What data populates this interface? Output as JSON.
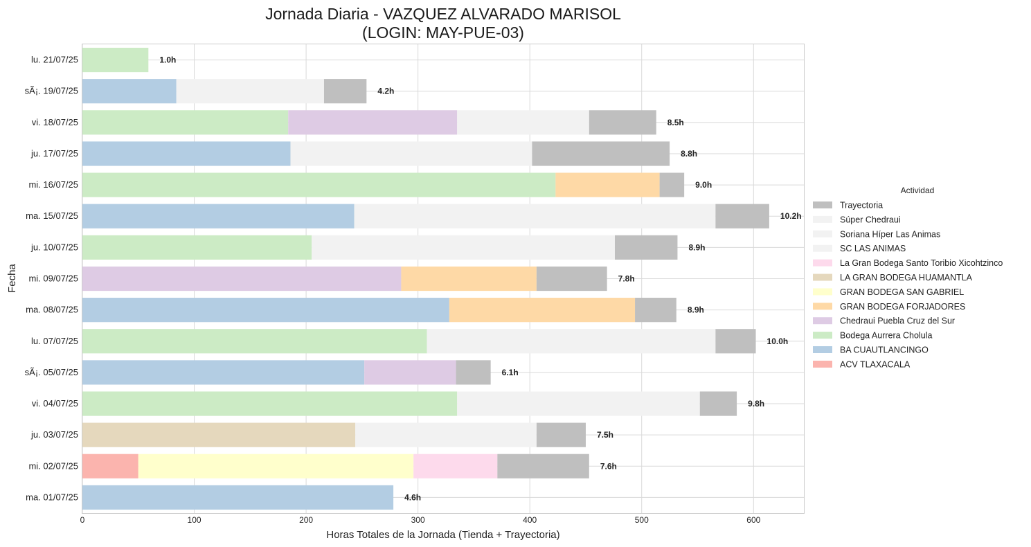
{
  "chart_data": {
    "type": "bar",
    "orientation": "horizontal",
    "stacked": true,
    "title": "Jornada Diaria - VAZQUEZ ALVARADO MARISOL",
    "subtitle": "(LOGIN: MAY-PUE-03)",
    "xlabel": "Horas Totales de la Jornada (Tienda + Trayectoria)",
    "ylabel": "Fecha",
    "xlim": [
      0,
      645
    ],
    "xticks": [
      0,
      100,
      200,
      300,
      400,
      500,
      600
    ],
    "grid": true,
    "legend": {
      "title": "Actividad",
      "placement": "center-right",
      "entries": [
        {
          "name": "Trayectoria",
          "color": "#bfbfbf"
        },
        {
          "name": "Súper Chedraui",
          "color": "#f2f2f2"
        },
        {
          "name": "Soriana Híper Las Animas",
          "color": "#f2f2f2"
        },
        {
          "name": "SC LAS ANIMAS",
          "color": "#f2f2f2"
        },
        {
          "name": "La Gran Bodega Santo Toribio Xicohtzinco",
          "color": "#fddaec"
        },
        {
          "name": "LA GRAN BODEGA HUAMANTLA",
          "color": "#e5d8bd"
        },
        {
          "name": "GRAN BODEGA SAN GABRIEL",
          "color": "#ffffcc"
        },
        {
          "name": "GRAN BODEGA FORJADORES",
          "color": "#fed9a6"
        },
        {
          "name": "Chedraui Puebla Cruz del Sur",
          "color": "#decbe4"
        },
        {
          "name": "Bodega Aurrera Cholula",
          "color": "#ccebc5"
        },
        {
          "name": "BA CUAUTLANCINGO",
          "color": "#b3cde3"
        },
        {
          "name": "ACV TLAXACALA",
          "color": "#fbb4ae"
        }
      ]
    },
    "rows": [
      {
        "date": "lu. 21/07/25",
        "total_label": "1.0h",
        "segments": [
          {
            "activity": "Bodega Aurrera Cholula",
            "value": 59
          }
        ]
      },
      {
        "date": "sÃ¡. 19/07/25",
        "total_label": "4.2h",
        "segments": [
          {
            "activity": "BA CUAUTLANCINGO",
            "value": 84
          },
          {
            "activity": "Súper Chedraui",
            "value": 132
          },
          {
            "activity": "Trayectoria",
            "value": 38
          }
        ]
      },
      {
        "date": "vi. 18/07/25",
        "total_label": "8.5h",
        "segments": [
          {
            "activity": "Bodega Aurrera Cholula",
            "value": 184
          },
          {
            "activity": "Chedraui Puebla Cruz del Sur",
            "value": 151
          },
          {
            "activity": "Súper Chedraui",
            "value": 118
          },
          {
            "activity": "Trayectoria",
            "value": 60
          }
        ]
      },
      {
        "date": "ju. 17/07/25",
        "total_label": "8.8h",
        "segments": [
          {
            "activity": "BA CUAUTLANCINGO",
            "value": 186
          },
          {
            "activity": "Súper Chedraui",
            "value": 216
          },
          {
            "activity": "Trayectoria",
            "value": 123
          }
        ]
      },
      {
        "date": "mi. 16/07/25",
        "total_label": "9.0h",
        "segments": [
          {
            "activity": "Bodega Aurrera Cholula",
            "value": 423
          },
          {
            "activity": "GRAN BODEGA FORJADORES",
            "value": 93
          },
          {
            "activity": "Trayectoria",
            "value": 22
          }
        ]
      },
      {
        "date": "ma. 15/07/25",
        "total_label": "10.2h",
        "segments": [
          {
            "activity": "BA CUAUTLANCINGO",
            "value": 243
          },
          {
            "activity": "Súper Chedraui",
            "value": 323
          },
          {
            "activity": "Trayectoria",
            "value": 48
          }
        ]
      },
      {
        "date": "ju. 10/07/25",
        "total_label": "8.9h",
        "segments": [
          {
            "activity": "Bodega Aurrera Cholula",
            "value": 205
          },
          {
            "activity": "Súper Chedraui",
            "value": 271
          },
          {
            "activity": "Trayectoria",
            "value": 56
          }
        ]
      },
      {
        "date": "mi. 09/07/25",
        "total_label": "7.8h",
        "segments": [
          {
            "activity": "Chedraui Puebla Cruz del Sur",
            "value": 285
          },
          {
            "activity": "GRAN BODEGA FORJADORES",
            "value": 121
          },
          {
            "activity": "Trayectoria",
            "value": 63
          }
        ]
      },
      {
        "date": "ma. 08/07/25",
        "total_label": "8.9h",
        "segments": [
          {
            "activity": "BA CUAUTLANCINGO",
            "value": 328
          },
          {
            "activity": "GRAN BODEGA FORJADORES",
            "value": 166
          },
          {
            "activity": "Trayectoria",
            "value": 37
          }
        ]
      },
      {
        "date": "lu. 07/07/25",
        "total_label": "10.0h",
        "segments": [
          {
            "activity": "Bodega Aurrera Cholula",
            "value": 308
          },
          {
            "activity": "Súper Chedraui",
            "value": 258
          },
          {
            "activity": "Trayectoria",
            "value": 36
          }
        ]
      },
      {
        "date": "sÃ¡. 05/07/25",
        "total_label": "6.1h",
        "segments": [
          {
            "activity": "BA CUAUTLANCINGO",
            "value": 252
          },
          {
            "activity": "Chedraui Puebla Cruz del Sur",
            "value": 82
          },
          {
            "activity": "Trayectoria",
            "value": 31
          }
        ]
      },
      {
        "date": "vi. 04/07/25",
        "total_label": "9.8h",
        "segments": [
          {
            "activity": "Bodega Aurrera Cholula",
            "value": 335
          },
          {
            "activity": "Súper Chedraui",
            "value": 217
          },
          {
            "activity": "Trayectoria",
            "value": 33
          }
        ]
      },
      {
        "date": "ju. 03/07/25",
        "total_label": "7.5h",
        "segments": [
          {
            "activity": "LA GRAN BODEGA HUAMANTLA",
            "value": 244
          },
          {
            "activity": "Súper Chedraui",
            "value": 162
          },
          {
            "activity": "Trayectoria",
            "value": 44
          }
        ]
      },
      {
        "date": "mi. 02/07/25",
        "total_label": "7.6h",
        "segments": [
          {
            "activity": "ACV TLAXACALA",
            "value": 50
          },
          {
            "activity": "GRAN BODEGA SAN GABRIEL",
            "value": 246
          },
          {
            "activity": "La Gran Bodega Santo Toribio Xicohtzinco",
            "value": 75
          },
          {
            "activity": "Trayectoria",
            "value": 82
          }
        ]
      },
      {
        "date": "ma. 01/07/25",
        "total_label": "4.6h",
        "segments": [
          {
            "activity": "BA CUAUTLANCINGO",
            "value": 278
          }
        ]
      }
    ]
  }
}
